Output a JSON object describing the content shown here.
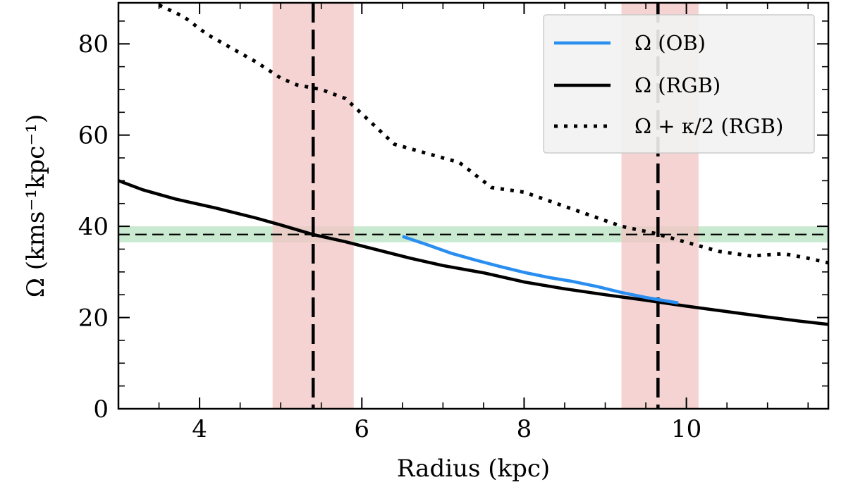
{
  "chart_data": {
    "type": "line",
    "xlabel": "Radius (kpc)",
    "ylabel": "Ω (kms⁻¹kpc⁻¹)",
    "xlim": [
      3.0,
      11.75
    ],
    "ylim": [
      0,
      89
    ],
    "x_ticks": [
      4,
      6,
      8,
      10
    ],
    "y_ticks": [
      0,
      20,
      40,
      60,
      80
    ],
    "grid": false,
    "legend_position": "top-right",
    "colors": {
      "ob": "#2a8ef0",
      "rgb": "#000000",
      "vband": "#f2c4c4",
      "hband": "#bfe6c8"
    },
    "series": [
      {
        "name": "Ω (OB)",
        "style": "solid",
        "color": "#2a8ef0",
        "x": [
          6.5,
          6.8,
          7.1,
          7.4,
          7.7,
          8.0,
          8.3,
          8.6,
          8.9,
          9.2,
          9.5,
          9.9
        ],
        "y": [
          37.8,
          36.0,
          34.1,
          32.6,
          31.2,
          29.9,
          28.8,
          27.9,
          26.8,
          25.5,
          24.4,
          23.2
        ]
      },
      {
        "name": "Ω (RGB)",
        "style": "solid",
        "color": "#000000",
        "x": [
          3.0,
          3.3,
          3.7,
          4.2,
          4.7,
          5.0,
          5.4,
          5.8,
          6.2,
          6.6,
          7.0,
          7.5,
          8.0,
          8.5,
          9.0,
          9.5,
          10.0,
          10.5,
          11.0,
          11.4,
          11.75
        ],
        "y": [
          50.0,
          48.0,
          46.0,
          44.0,
          41.8,
          40.3,
          38.2,
          36.6,
          34.8,
          33.0,
          31.4,
          29.8,
          27.8,
          26.3,
          25.0,
          23.8,
          22.5,
          21.3,
          20.1,
          19.2,
          18.5
        ]
      },
      {
        "name": "Ω + κ/2 (RGB)",
        "style": "dotted",
        "color": "#000000",
        "x": [
          3.5,
          3.8,
          4.1,
          4.4,
          4.7,
          5.0,
          5.2,
          5.5,
          5.8,
          6.1,
          6.4,
          6.8,
          7.2,
          7.6,
          8.0,
          8.4,
          8.8,
          9.2,
          9.6,
          10.0,
          10.4,
          10.8,
          11.2,
          11.5,
          11.75
        ],
        "y": [
          88.5,
          86.0,
          82.0,
          79.0,
          76.0,
          72.5,
          71.0,
          70.0,
          68.0,
          63.0,
          58.0,
          56.0,
          54.0,
          48.5,
          47.5,
          45.0,
          42.5,
          40.0,
          38.5,
          36.5,
          34.5,
          33.5,
          34.0,
          33.0,
          32.0
        ]
      }
    ],
    "vertical_lines": [
      {
        "x": 5.4,
        "band": [
          4.9,
          5.9
        ]
      },
      {
        "x": 9.65,
        "band": [
          9.2,
          10.15
        ]
      }
    ],
    "horizontal_line": {
      "y": 38.2,
      "band": [
        36.5,
        40.0
      ]
    }
  }
}
